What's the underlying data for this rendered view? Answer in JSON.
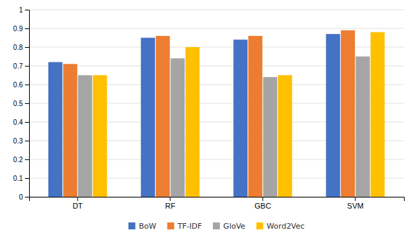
{
  "chart_data": {
    "type": "bar",
    "categories": [
      "DT",
      "RF",
      "GBC",
      "SVM"
    ],
    "series": [
      {
        "name": "BoW",
        "color": "#4472C4",
        "values": [
          0.72,
          0.85,
          0.84,
          0.87
        ]
      },
      {
        "name": "TF-IDF",
        "color": "#ED7D31",
        "values": [
          0.71,
          0.86,
          0.86,
          0.89
        ]
      },
      {
        "name": "GloVe",
        "color": "#A5A5A5",
        "values": [
          0.65,
          0.74,
          0.64,
          0.75
        ]
      },
      {
        "name": "Word2Vec",
        "color": "#FFC000",
        "values": [
          0.65,
          0.8,
          0.65,
          0.88
        ]
      }
    ],
    "ylim": [
      0,
      1.0
    ],
    "yticks": [
      0,
      0.1,
      0.2,
      0.3,
      0.4,
      0.5,
      0.6,
      0.7,
      0.8,
      0.9,
      1
    ],
    "grid": true,
    "legend": "bottom"
  }
}
